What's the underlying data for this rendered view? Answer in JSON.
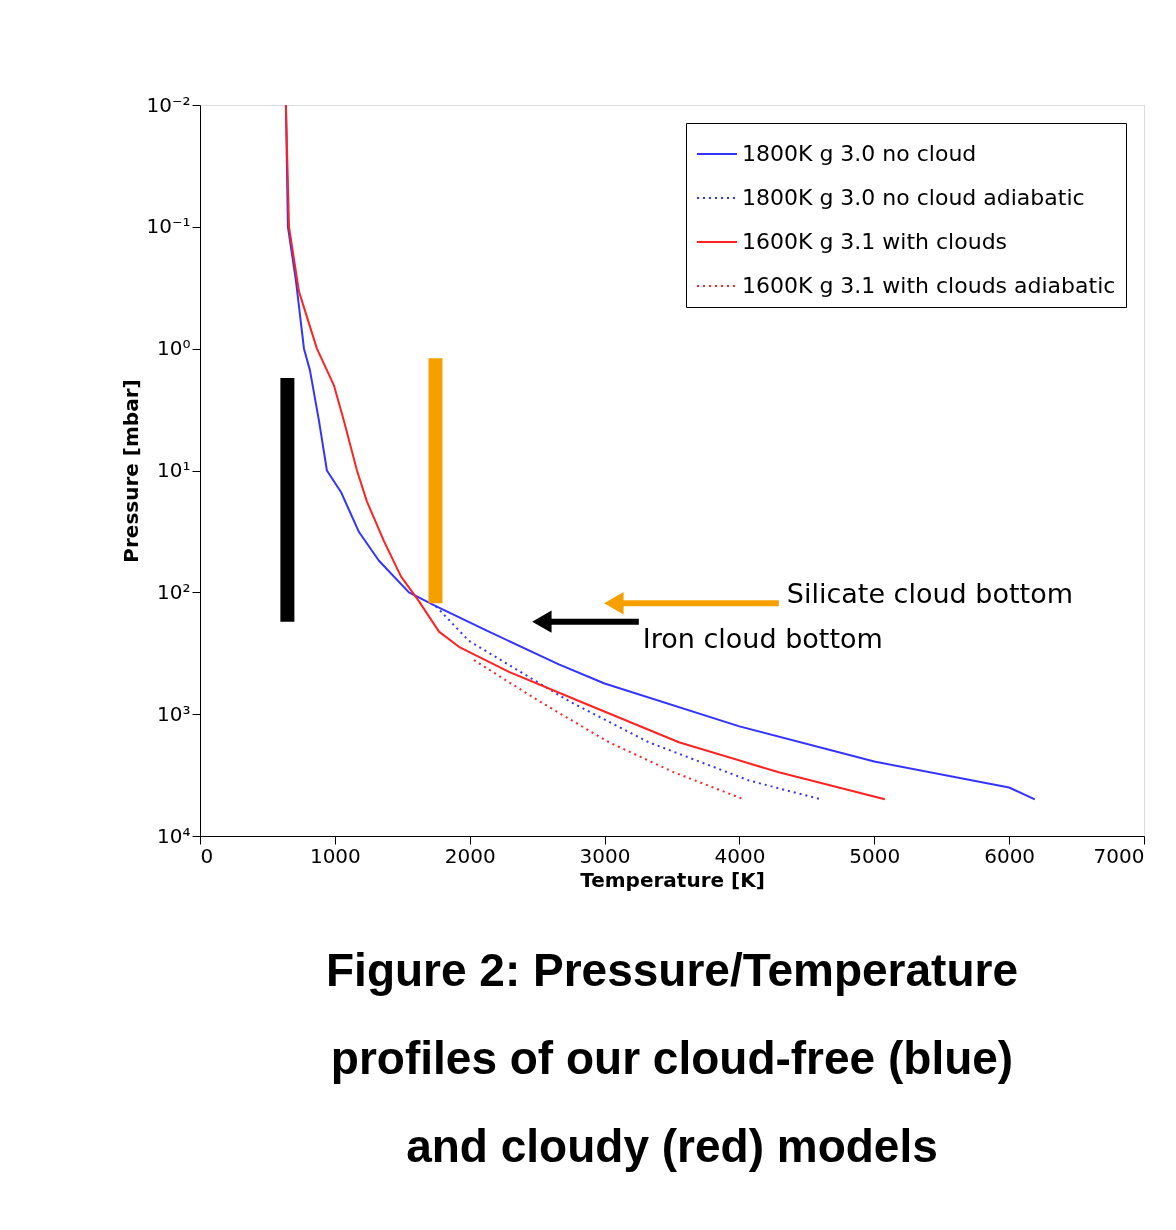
{
  "chart_data": {
    "type": "line",
    "title": "Figure 2: Pressure/Temperature profiles of our cloud-free (blue) and cloudy (red) models",
    "xlabel": "Temperature [K]",
    "ylabel": "Pressure [mbar]",
    "xlim": [
      0,
      7000
    ],
    "xticks": [
      0,
      1000,
      2000,
      3000,
      4000,
      5000,
      6000,
      7000
    ],
    "ylim": [
      10000,
      0.01
    ],
    "yticks": [
      {
        "value": 0.01,
        "label": "10⁻²"
      },
      {
        "value": 0.1,
        "label": "10⁻¹"
      },
      {
        "value": 1,
        "label": "10⁰"
      },
      {
        "value": 10,
        "label": "10¹"
      },
      {
        "value": 100,
        "label": "10²"
      },
      {
        "value": 1000,
        "label": "10³"
      },
      {
        "value": 10000,
        "label": "10⁴"
      }
    ],
    "log": "y",
    "grid": false,
    "legend": "top right",
    "series": [
      {
        "name": "1800K g 3.0 no cloud",
        "color": "#3333ff",
        "line_style": "solid",
        "x": [
          637,
          652,
          712,
          771,
          815,
          882,
          941,
          1045,
          1179,
          1327,
          1549,
          1749,
          2142,
          2661,
          3000,
          4000,
          5000,
          6000,
          6190
        ],
        "values": [
          0.01,
          0.1,
          0.28,
          1,
          1.5,
          3.9,
          10,
          15,
          32,
          55,
          100,
          130,
          210,
          390,
          560,
          1260,
          2450,
          4000,
          5000
        ]
      },
      {
        "name": "1800K g 3.0 no cloud adiabatic",
        "color": "#3333ff",
        "line_style": "dotted",
        "x": [
          1749,
          1994,
          2735,
          3328,
          4070,
          4603
        ],
        "values": [
          130,
          250,
          780,
          1700,
          3500,
          5000
        ]
      },
      {
        "name": "1600K g 3.1 with clouds",
        "color": "#ff2222",
        "line_style": "solid",
        "x": [
          637,
          660,
          734,
          867,
          993,
          1067,
          1164,
          1238,
          1364,
          1490,
          1623,
          1772,
          1920,
          2291,
          2810,
          3551,
          4292,
          5078
        ],
        "values": [
          0.01,
          0.1,
          0.34,
          1,
          2,
          3.9,
          10,
          18,
          38,
          74,
          118,
          210,
          280,
          450,
          780,
          1700,
          3000,
          5000
        ]
      },
      {
        "name": "1600K g 3.1 with clouds adiabatic",
        "color": "#ff2222",
        "line_style": "dotted",
        "x": [
          2031,
          2513,
          3032,
          3514,
          4033
        ],
        "values": [
          360,
          780,
          1700,
          3000,
          5000
        ]
      },
      {
        "type": "line",
        "color": "#000000",
        "x": [
          648,
          648
        ],
        "values": [
          1.74,
          174
        ]
      },
      {
        "type": "line",
        "color": "#f5a000",
        "x": [
          1746,
          1746
        ],
        "values": [
          1.2,
          123
        ]
      },
      {
        "type": "line",
        "color": "#f5a000",
        "marker": "triangle",
        "x": [
          3069,
          4292
        ],
        "values": [
          123,
          123
        ]
      },
      {
        "type": "line",
        "color": "#000000",
        "marker": "triangle",
        "x": [
          2535,
          3254
        ],
        "values": [
          174,
          174
        ]
      }
    ],
    "annotations": [
      "Silicate cloud bottom",
      "Iron cloud bottom"
    ]
  }
}
